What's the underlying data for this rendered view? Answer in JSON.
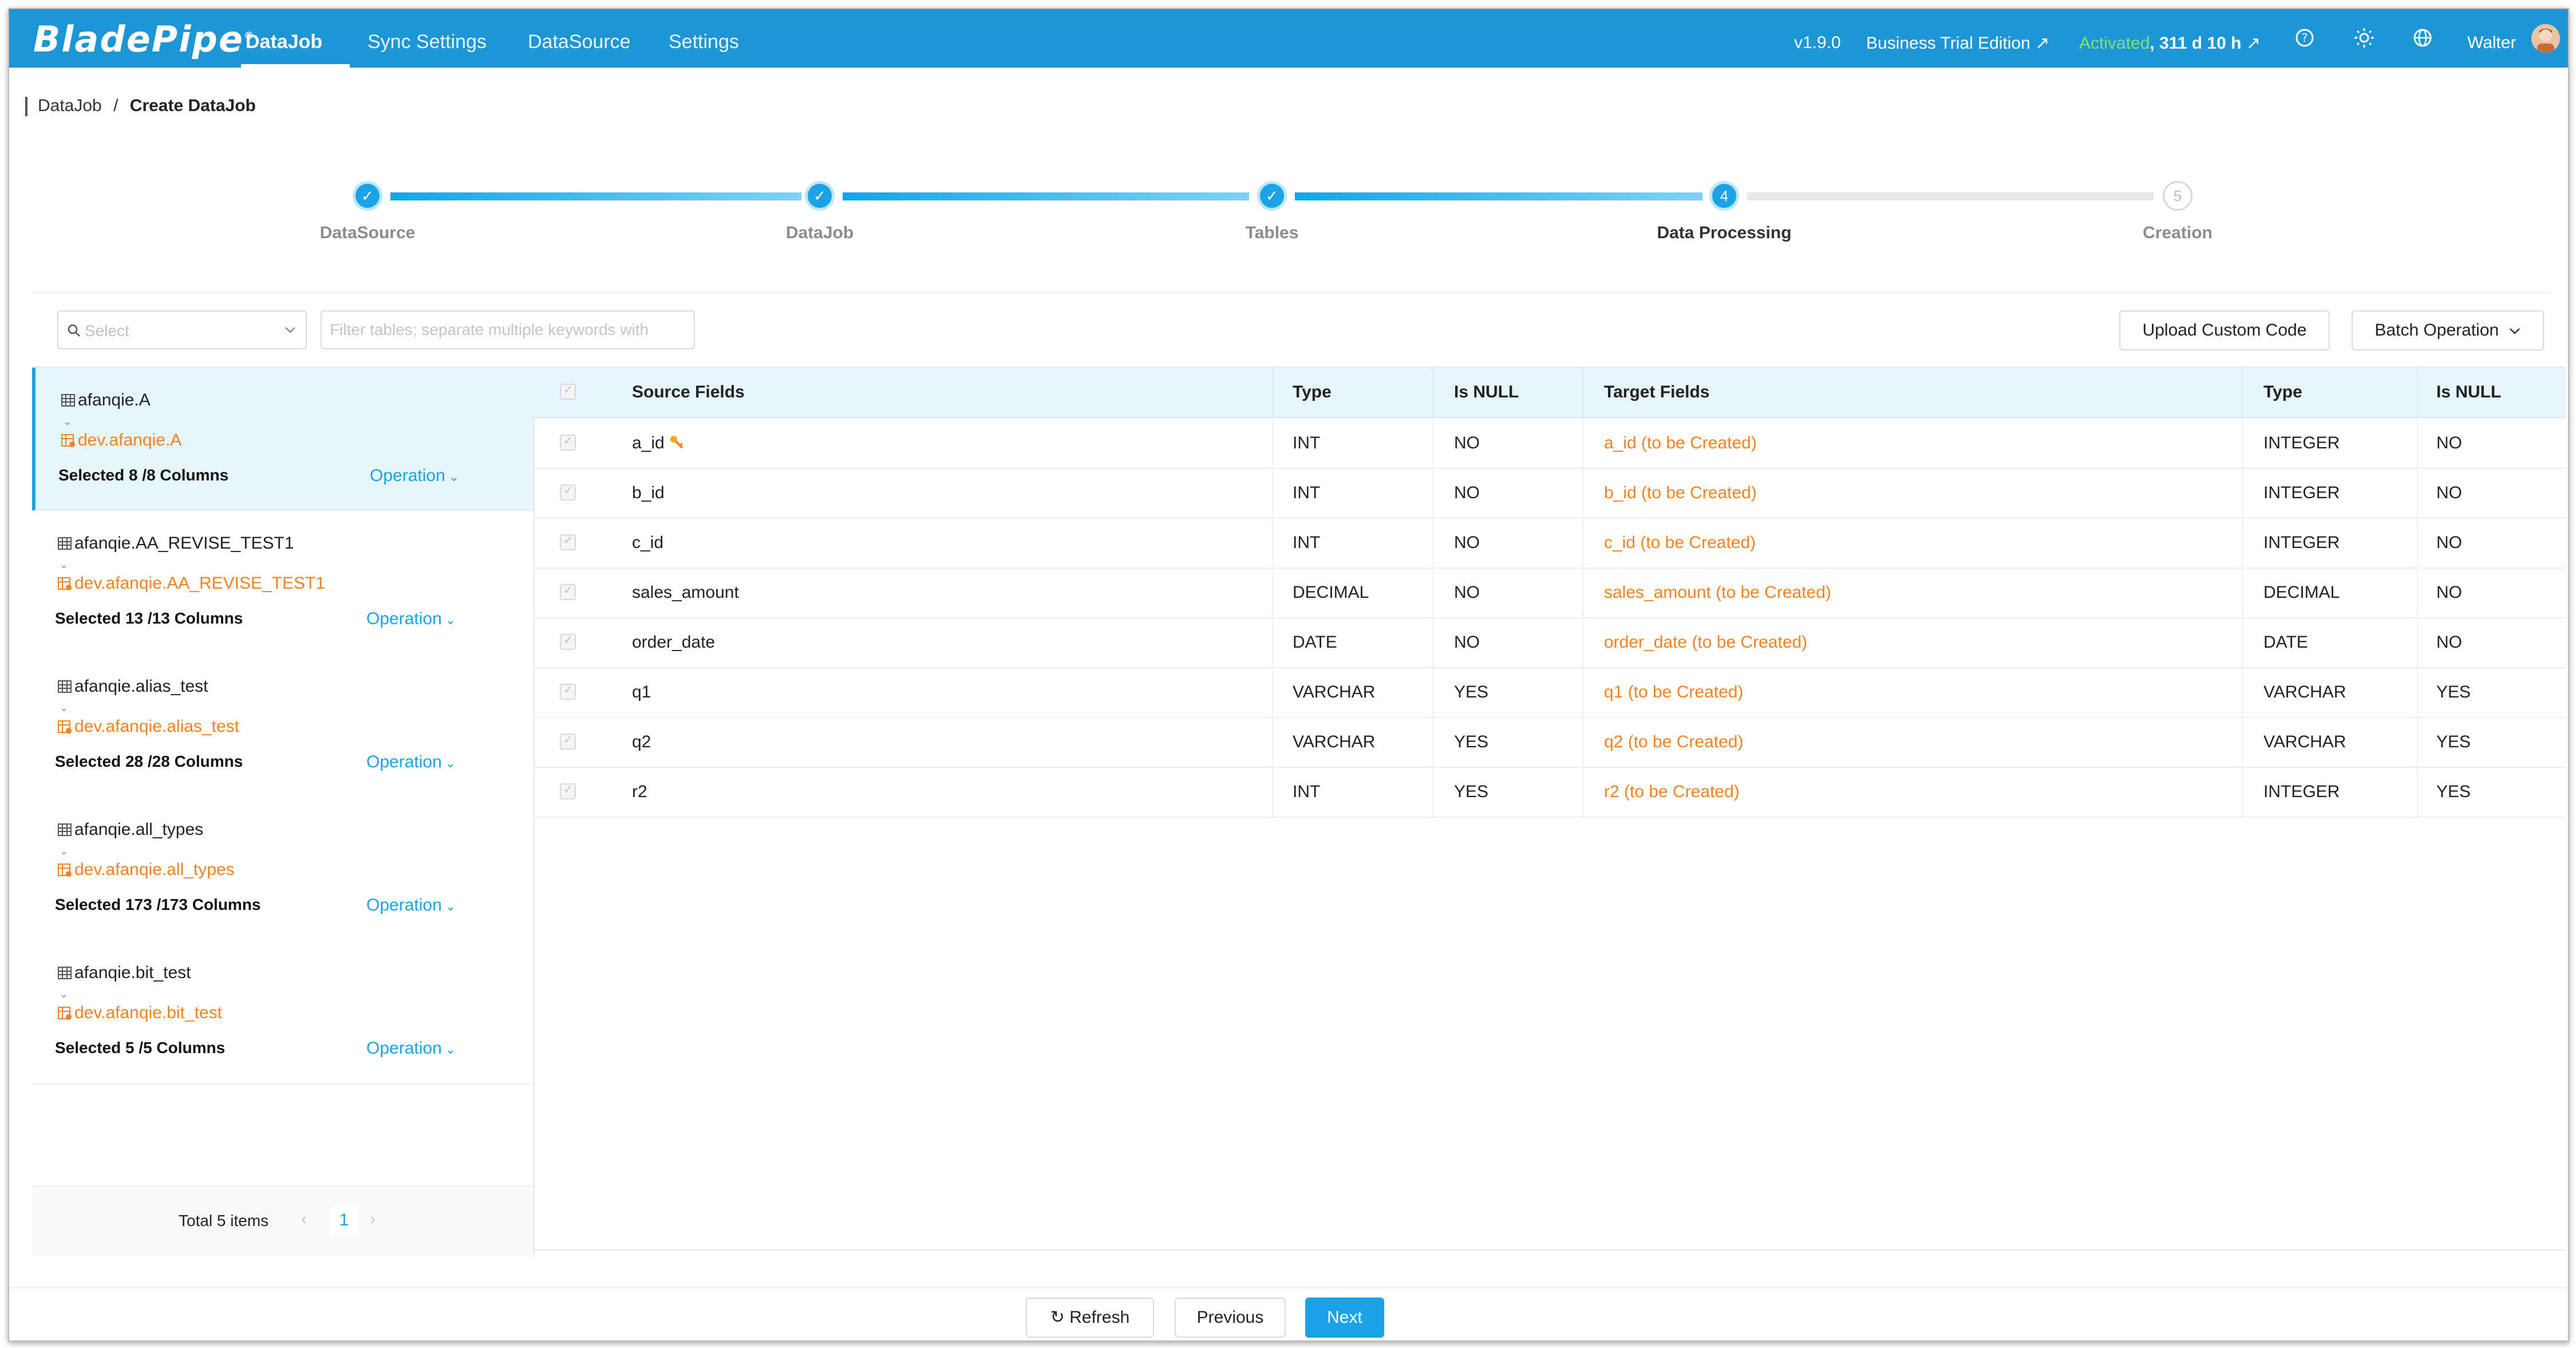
{
  "header": {
    "logo": "BladePipe",
    "nav": [
      "DataJob",
      "Sync Settings",
      "DataSource",
      "Settings"
    ],
    "version": "v1.9.0",
    "edition": "Business Trial Edition",
    "activated": "Activated",
    "remaining": ", 311 d 10 h",
    "user": "Walter"
  },
  "breadcrumb": {
    "root": "DataJob",
    "sep": "/",
    "current": "Create DataJob"
  },
  "steps": [
    {
      "label": "DataSource",
      "state": "done"
    },
    {
      "label": "DataJob",
      "state": "done"
    },
    {
      "label": "Tables",
      "state": "done"
    },
    {
      "label": "Data Processing",
      "state": "current",
      "number": "4"
    },
    {
      "label": "Creation",
      "state": "pending",
      "number": "5"
    }
  ],
  "filters": {
    "select_placeholder": "Select",
    "search_placeholder": "Filter tables; separate multiple keywords with"
  },
  "buttons": {
    "upload": "Upload Custom Code",
    "batch": "Batch Operation",
    "refresh": "Refresh",
    "previous": "Previous",
    "next": "Next"
  },
  "tables": [
    {
      "source": "afanqie.A",
      "target": "dev.afanqie.A",
      "selected": "Selected 8 /8 Columns",
      "op": "Operation"
    },
    {
      "source": "afanqie.AA_REVISE_TEST1",
      "target": "dev.afanqie.AA_REVISE_TEST1",
      "selected": "Selected 13 /13 Columns",
      "op": "Operation"
    },
    {
      "source": "afanqie.alias_test",
      "target": "dev.afanqie.alias_test",
      "selected": "Selected 28 /28 Columns",
      "op": "Operation"
    },
    {
      "source": "afanqie.all_types",
      "target": "dev.afanqie.all_types",
      "selected": "Selected 173 /173 Columns",
      "op": "Operation"
    },
    {
      "source": "afanqie.bit_test",
      "target": "dev.afanqie.bit_test",
      "selected": "Selected 5 /5 Columns",
      "op": "Operation"
    }
  ],
  "pagination": {
    "total": "Total 5 items",
    "page": "1"
  },
  "columns": [
    "Source Fields",
    "Type",
    "Is NULL",
    "Target Fields",
    "Type",
    "Is NULL"
  ],
  "rows": [
    {
      "src": "a_id",
      "stype": "INT",
      "snull": "NO",
      "tgt": "a_id (to be Created)",
      "ttype": "INTEGER",
      "tnull": "NO"
    },
    {
      "src": "b_id",
      "stype": "INT",
      "snull": "NO",
      "tgt": "b_id (to be Created)",
      "ttype": "INTEGER",
      "tnull": "NO"
    },
    {
      "src": "c_id",
      "stype": "INT",
      "snull": "NO",
      "tgt": "c_id (to be Created)",
      "ttype": "INTEGER",
      "tnull": "NO"
    },
    {
      "src": "sales_amount",
      "stype": "DECIMAL",
      "snull": "NO",
      "tgt": "sales_amount (to be Created)",
      "ttype": "DECIMAL",
      "tnull": "NO"
    },
    {
      "src": "order_date",
      "stype": "DATE",
      "snull": "NO",
      "tgt": "order_date (to be Created)",
      "ttype": "DATE",
      "tnull": "NO"
    },
    {
      "src": "q1",
      "stype": "VARCHAR",
      "snull": "YES",
      "tgt": "q1 (to be Created)",
      "ttype": "VARCHAR",
      "tnull": "YES"
    },
    {
      "src": "q2",
      "stype": "VARCHAR",
      "snull": "YES",
      "tgt": "q2 (to be Created)",
      "ttype": "VARCHAR",
      "tnull": "YES"
    },
    {
      "src": "r2",
      "stype": "INT",
      "snull": "YES",
      "tgt": "r2 (to be Created)",
      "ttype": "INTEGER",
      "tnull": "YES"
    }
  ],
  "colors": {
    "brand": "#1e95d4",
    "accent": "#1aa3e6",
    "target": "#f58220",
    "activated": "#7fe07a"
  }
}
